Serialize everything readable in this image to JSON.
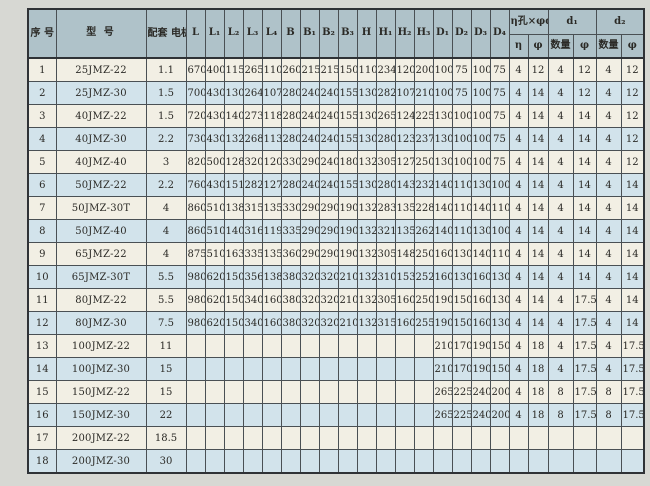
{
  "colors": {
    "page_bg": "#d7d8d3",
    "header_bg": "#afc2c9",
    "row_odd_bg": "#f2efe4",
    "row_even_bg": "#d2e3eb",
    "grid_line": "#4a5054",
    "outer_border": "#2f3236",
    "text": "#2b2a26"
  },
  "table": {
    "header": {
      "seq": "序\n号",
      "model": "型  号",
      "motor": "配套\n电机\n(kw)",
      "dims": [
        "L",
        "L₁",
        "L₂",
        "L₃",
        "L₄",
        "B",
        "B₁",
        "B₂",
        "B₃",
        "H",
        "H₁",
        "H₂",
        "H₃",
        "D₁",
        "D₂",
        "D₃",
        "D₄"
      ],
      "groups": [
        {
          "label": "η孔×φd",
          "subs": [
            "η",
            "φ"
          ]
        },
        {
          "label": "d₁",
          "subs": [
            "数量",
            "φ"
          ]
        },
        {
          "label": "d₂",
          "subs": [
            "数量",
            "φ"
          ]
        }
      ]
    },
    "rows": [
      {
        "seq": "1",
        "model": "25JMZ-22",
        "motor": "1.1",
        "values": [
          "670",
          "400",
          "115",
          "265",
          "110",
          "260",
          "215",
          "215",
          "150",
          "110",
          "234",
          "120",
          "200",
          "100",
          "75",
          "100",
          "75",
          "4",
          "12",
          "4",
          "12",
          "4",
          "12"
        ]
      },
      {
        "seq": "2",
        "model": "25JMZ-30",
        "motor": "1.5",
        "values": [
          "700",
          "430",
          "130",
          "264",
          "107",
          "280",
          "240",
          "240",
          "155",
          "130",
          "282",
          "107",
          "210",
          "100",
          "75",
          "100",
          "75",
          "4",
          "14",
          "4",
          "12",
          "4",
          "12"
        ]
      },
      {
        "seq": "3",
        "model": "40JMZ-22",
        "motor": "1.5",
        "values": [
          "720",
          "430",
          "140",
          "273",
          "118",
          "280",
          "240",
          "240",
          "155",
          "130",
          "265",
          "124",
          "225",
          "130",
          "100",
          "100",
          "75",
          "4",
          "14",
          "4",
          "14",
          "4",
          "12"
        ]
      },
      {
        "seq": "4",
        "model": "40JMZ-30",
        "motor": "2.2",
        "values": [
          "730",
          "430",
          "132",
          "268",
          "113",
          "280",
          "240",
          "240",
          "155",
          "130",
          "280",
          "123",
          "237",
          "130",
          "100",
          "100",
          "75",
          "4",
          "14",
          "4",
          "14",
          "4",
          "12"
        ]
      },
      {
        "seq": "5",
        "model": "40JMZ-40",
        "motor": "3",
        "values": [
          "820",
          "500",
          "128",
          "320",
          "120",
          "330",
          "290",
          "240",
          "180",
          "132",
          "305",
          "127",
          "250",
          "130",
          "100",
          "100",
          "75",
          "4",
          "14",
          "4",
          "14",
          "4",
          "12"
        ]
      },
      {
        "seq": "6",
        "model": "50JMZ-22",
        "motor": "2.2",
        "values": [
          "760",
          "430",
          "151",
          "282",
          "127",
          "280",
          "240",
          "240",
          "155",
          "130",
          "280",
          "143",
          "232",
          "140",
          "110",
          "130",
          "100",
          "4",
          "14",
          "4",
          "14",
          "4",
          "14"
        ]
      },
      {
        "seq": "7",
        "model": "50JMZ-30T",
        "motor": "4",
        "values": [
          "860",
          "510",
          "138",
          "315",
          "135",
          "330",
          "290",
          "290",
          "190",
          "132",
          "283",
          "135",
          "228",
          "140",
          "110",
          "140",
          "110",
          "4",
          "14",
          "4",
          "14",
          "4",
          "14"
        ]
      },
      {
        "seq": "8",
        "model": "50JMZ-40",
        "motor": "4",
        "values": [
          "860",
          "510",
          "140",
          "316",
          "119",
          "335",
          "290",
          "290",
          "190",
          "132",
          "321",
          "135",
          "262",
          "140",
          "110",
          "130",
          "100",
          "4",
          "14",
          "4",
          "14",
          "4",
          "14"
        ]
      },
      {
        "seq": "9",
        "model": "65JMZ-22",
        "motor": "4",
        "values": [
          "875",
          "510",
          "163",
          "335",
          "135",
          "360",
          "290",
          "290",
          "190",
          "132",
          "305",
          "148",
          "250",
          "160",
          "130",
          "140",
          "110",
          "4",
          "14",
          "4",
          "14",
          "4",
          "14"
        ]
      },
      {
        "seq": "10",
        "model": "65JMZ-30T",
        "motor": "5.5",
        "values": [
          "980",
          "620",
          "150",
          "356",
          "138",
          "380",
          "320",
          "320",
          "210",
          "132",
          "310",
          "153",
          "252",
          "160",
          "130",
          "160",
          "130",
          "4",
          "14",
          "4",
          "14",
          "4",
          "14"
        ]
      },
      {
        "seq": "11",
        "model": "80JMZ-22",
        "motor": "5.5",
        "values": [
          "980",
          "620",
          "150",
          "340",
          "160",
          "380",
          "320",
          "320",
          "210",
          "132",
          "305",
          "160",
          "250",
          "190",
          "150",
          "160",
          "130",
          "4",
          "14",
          "4",
          "17.5",
          "4",
          "14"
        ]
      },
      {
        "seq": "12",
        "model": "80JMZ-30",
        "motor": "7.5",
        "values": [
          "980",
          "620",
          "150",
          "340",
          "160",
          "380",
          "320",
          "320",
          "210",
          "132",
          "315",
          "160",
          "255",
          "190",
          "150",
          "160",
          "130",
          "4",
          "14",
          "4",
          "17.5",
          "4",
          "14"
        ]
      },
      {
        "seq": "13",
        "model": "100JMZ-22",
        "motor": "11",
        "values": [
          "",
          "",
          "",
          "",
          "",
          "",
          "",
          "",
          "",
          "",
          "",
          "",
          "",
          "210",
          "170",
          "190",
          "150",
          "4",
          "18",
          "4",
          "17.5",
          "4",
          "17.5"
        ]
      },
      {
        "seq": "14",
        "model": "100JMZ-30",
        "motor": "15",
        "values": [
          "",
          "",
          "",
          "",
          "",
          "",
          "",
          "",
          "",
          "",
          "",
          "",
          "",
          "210",
          "170",
          "190",
          "150",
          "4",
          "18",
          "4",
          "17.5",
          "4",
          "17.5"
        ]
      },
      {
        "seq": "15",
        "model": "150JMZ-22",
        "motor": "15",
        "values": [
          "",
          "",
          "",
          "",
          "",
          "",
          "",
          "",
          "",
          "",
          "",
          "",
          "",
          "265",
          "225",
          "240",
          "200",
          "4",
          "18",
          "8",
          "17.5",
          "8",
          "17.5"
        ]
      },
      {
        "seq": "16",
        "model": "150JMZ-30",
        "motor": "22",
        "values": [
          "",
          "",
          "",
          "",
          "",
          "",
          "",
          "",
          "",
          "",
          "",
          "",
          "",
          "265",
          "225",
          "240",
          "200",
          "4",
          "18",
          "8",
          "17.5",
          "8",
          "17.5"
        ]
      },
      {
        "seq": "17",
        "model": "200JMZ-22",
        "motor": "18.5",
        "values": [
          "",
          "",
          "",
          "",
          "",
          "",
          "",
          "",
          "",
          "",
          "",
          "",
          "",
          "",
          "",
          "",
          "",
          "",
          "",
          "",
          "",
          "",
          ""
        ]
      },
      {
        "seq": "18",
        "model": "200JMZ-30",
        "motor": "30",
        "values": [
          "",
          "",
          "",
          "",
          "",
          "",
          "",
          "",
          "",
          "",
          "",
          "",
          "",
          "",
          "",
          "",
          "",
          "",
          "",
          "",
          "",
          "",
          ""
        ]
      }
    ]
  }
}
